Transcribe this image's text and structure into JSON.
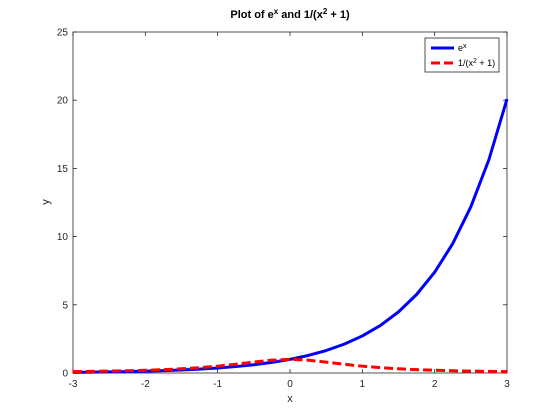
{
  "chart_data": {
    "type": "line",
    "title": {
      "prefix": "Plot of e",
      "prefix_sup": "x",
      "middle": " and 1/(x",
      "middle_sup": "2",
      "suffix": " + 1)"
    },
    "xlabel": "x",
    "ylabel": "y",
    "xlim": [
      -3,
      3
    ],
    "ylim": [
      0,
      25
    ],
    "xticks": [
      -3,
      -2,
      -1,
      0,
      1,
      2,
      3
    ],
    "yticks": [
      0,
      5,
      10,
      15,
      20,
      25
    ],
    "grid": false,
    "legend_position": "top-right",
    "series": [
      {
        "name": {
          "base": "e",
          "sup": "x",
          "tail": ""
        },
        "color": "#0000ff",
        "style": "solid",
        "x": [
          -3,
          -2.75,
          -2.5,
          -2.25,
          -2,
          -1.75,
          -1.5,
          -1.25,
          -1,
          -0.75,
          -0.5,
          -0.25,
          0,
          0.25,
          0.5,
          0.75,
          1,
          1.25,
          1.5,
          1.75,
          2,
          2.25,
          2.5,
          2.75,
          3
        ],
        "y": [
          0.05,
          0.064,
          0.082,
          0.105,
          0.135,
          0.174,
          0.223,
          0.287,
          0.368,
          0.472,
          0.607,
          0.779,
          1.0,
          1.284,
          1.649,
          2.117,
          2.718,
          3.49,
          4.482,
          5.755,
          7.389,
          9.488,
          12.182,
          15.643,
          20.086
        ]
      },
      {
        "name": {
          "base": "1/(x",
          "sup": "2",
          "tail": " + 1)"
        },
        "color": "#ff0000",
        "style": "dashed",
        "x": [
          -3,
          -2.75,
          -2.5,
          -2.25,
          -2,
          -1.75,
          -1.5,
          -1.25,
          -1,
          -0.75,
          -0.5,
          -0.25,
          0,
          0.25,
          0.5,
          0.75,
          1,
          1.25,
          1.5,
          1.75,
          2,
          2.25,
          2.5,
          2.75,
          3
        ],
        "y": [
          0.1,
          0.117,
          0.138,
          0.165,
          0.2,
          0.246,
          0.308,
          0.39,
          0.5,
          0.64,
          0.8,
          0.941,
          1.0,
          0.941,
          0.8,
          0.64,
          0.5,
          0.39,
          0.308,
          0.246,
          0.2,
          0.165,
          0.138,
          0.117,
          0.1
        ]
      }
    ]
  }
}
